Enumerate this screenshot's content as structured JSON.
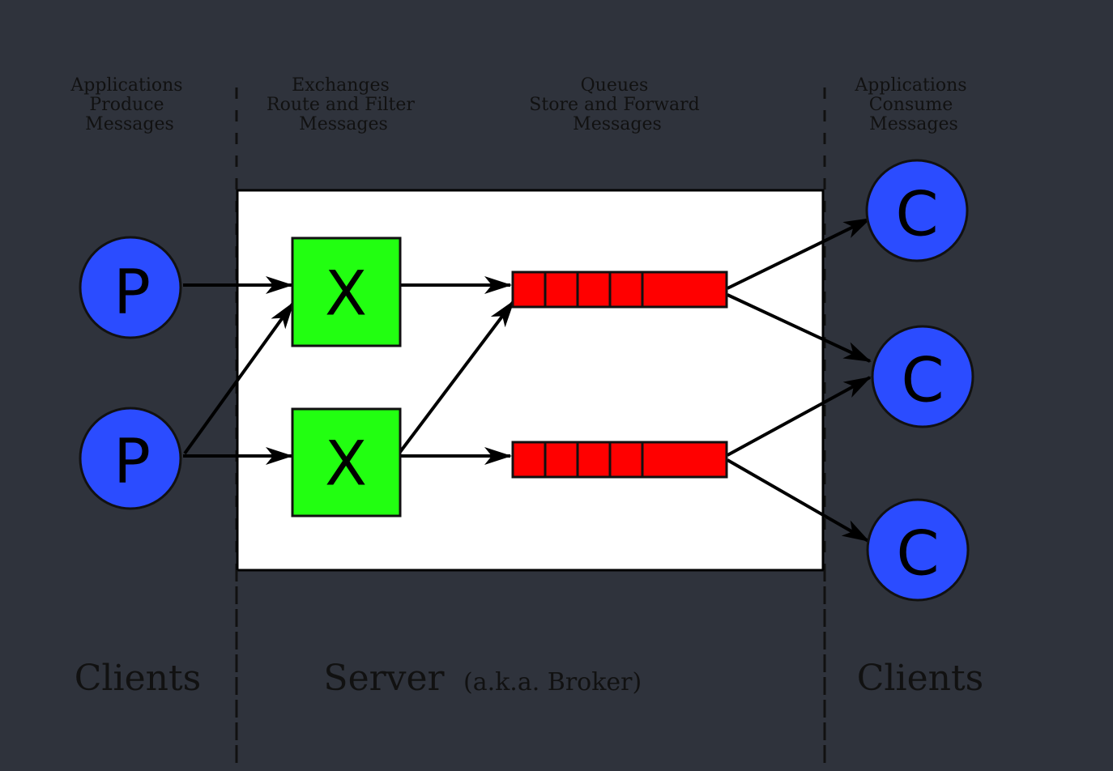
{
  "headers": {
    "producers": [
      "Applications",
      "Produce",
      "Messages"
    ],
    "exchanges": [
      "Exchanges",
      "Route and Filter",
      "Messages"
    ],
    "queues": [
      "Queues",
      "Store and Forward",
      "Messages"
    ],
    "consumers": [
      "Applications",
      "Consume",
      "Messages"
    ]
  },
  "footer": {
    "left_clients": "Clients",
    "server": "Server",
    "server_aka": "(a.k.a. Broker)",
    "right_clients": "Clients"
  },
  "nodes": {
    "producer_letter": "P",
    "exchange_letter": "X",
    "consumer_letter": "C"
  },
  "colors": {
    "background": "#2f333c",
    "server_box": "#ffffff",
    "producer_fill": "#2b4cff",
    "consumer_fill": "#2b4cff",
    "exchange_fill": "#22ff11",
    "queue_fill": "#ff0000"
  }
}
